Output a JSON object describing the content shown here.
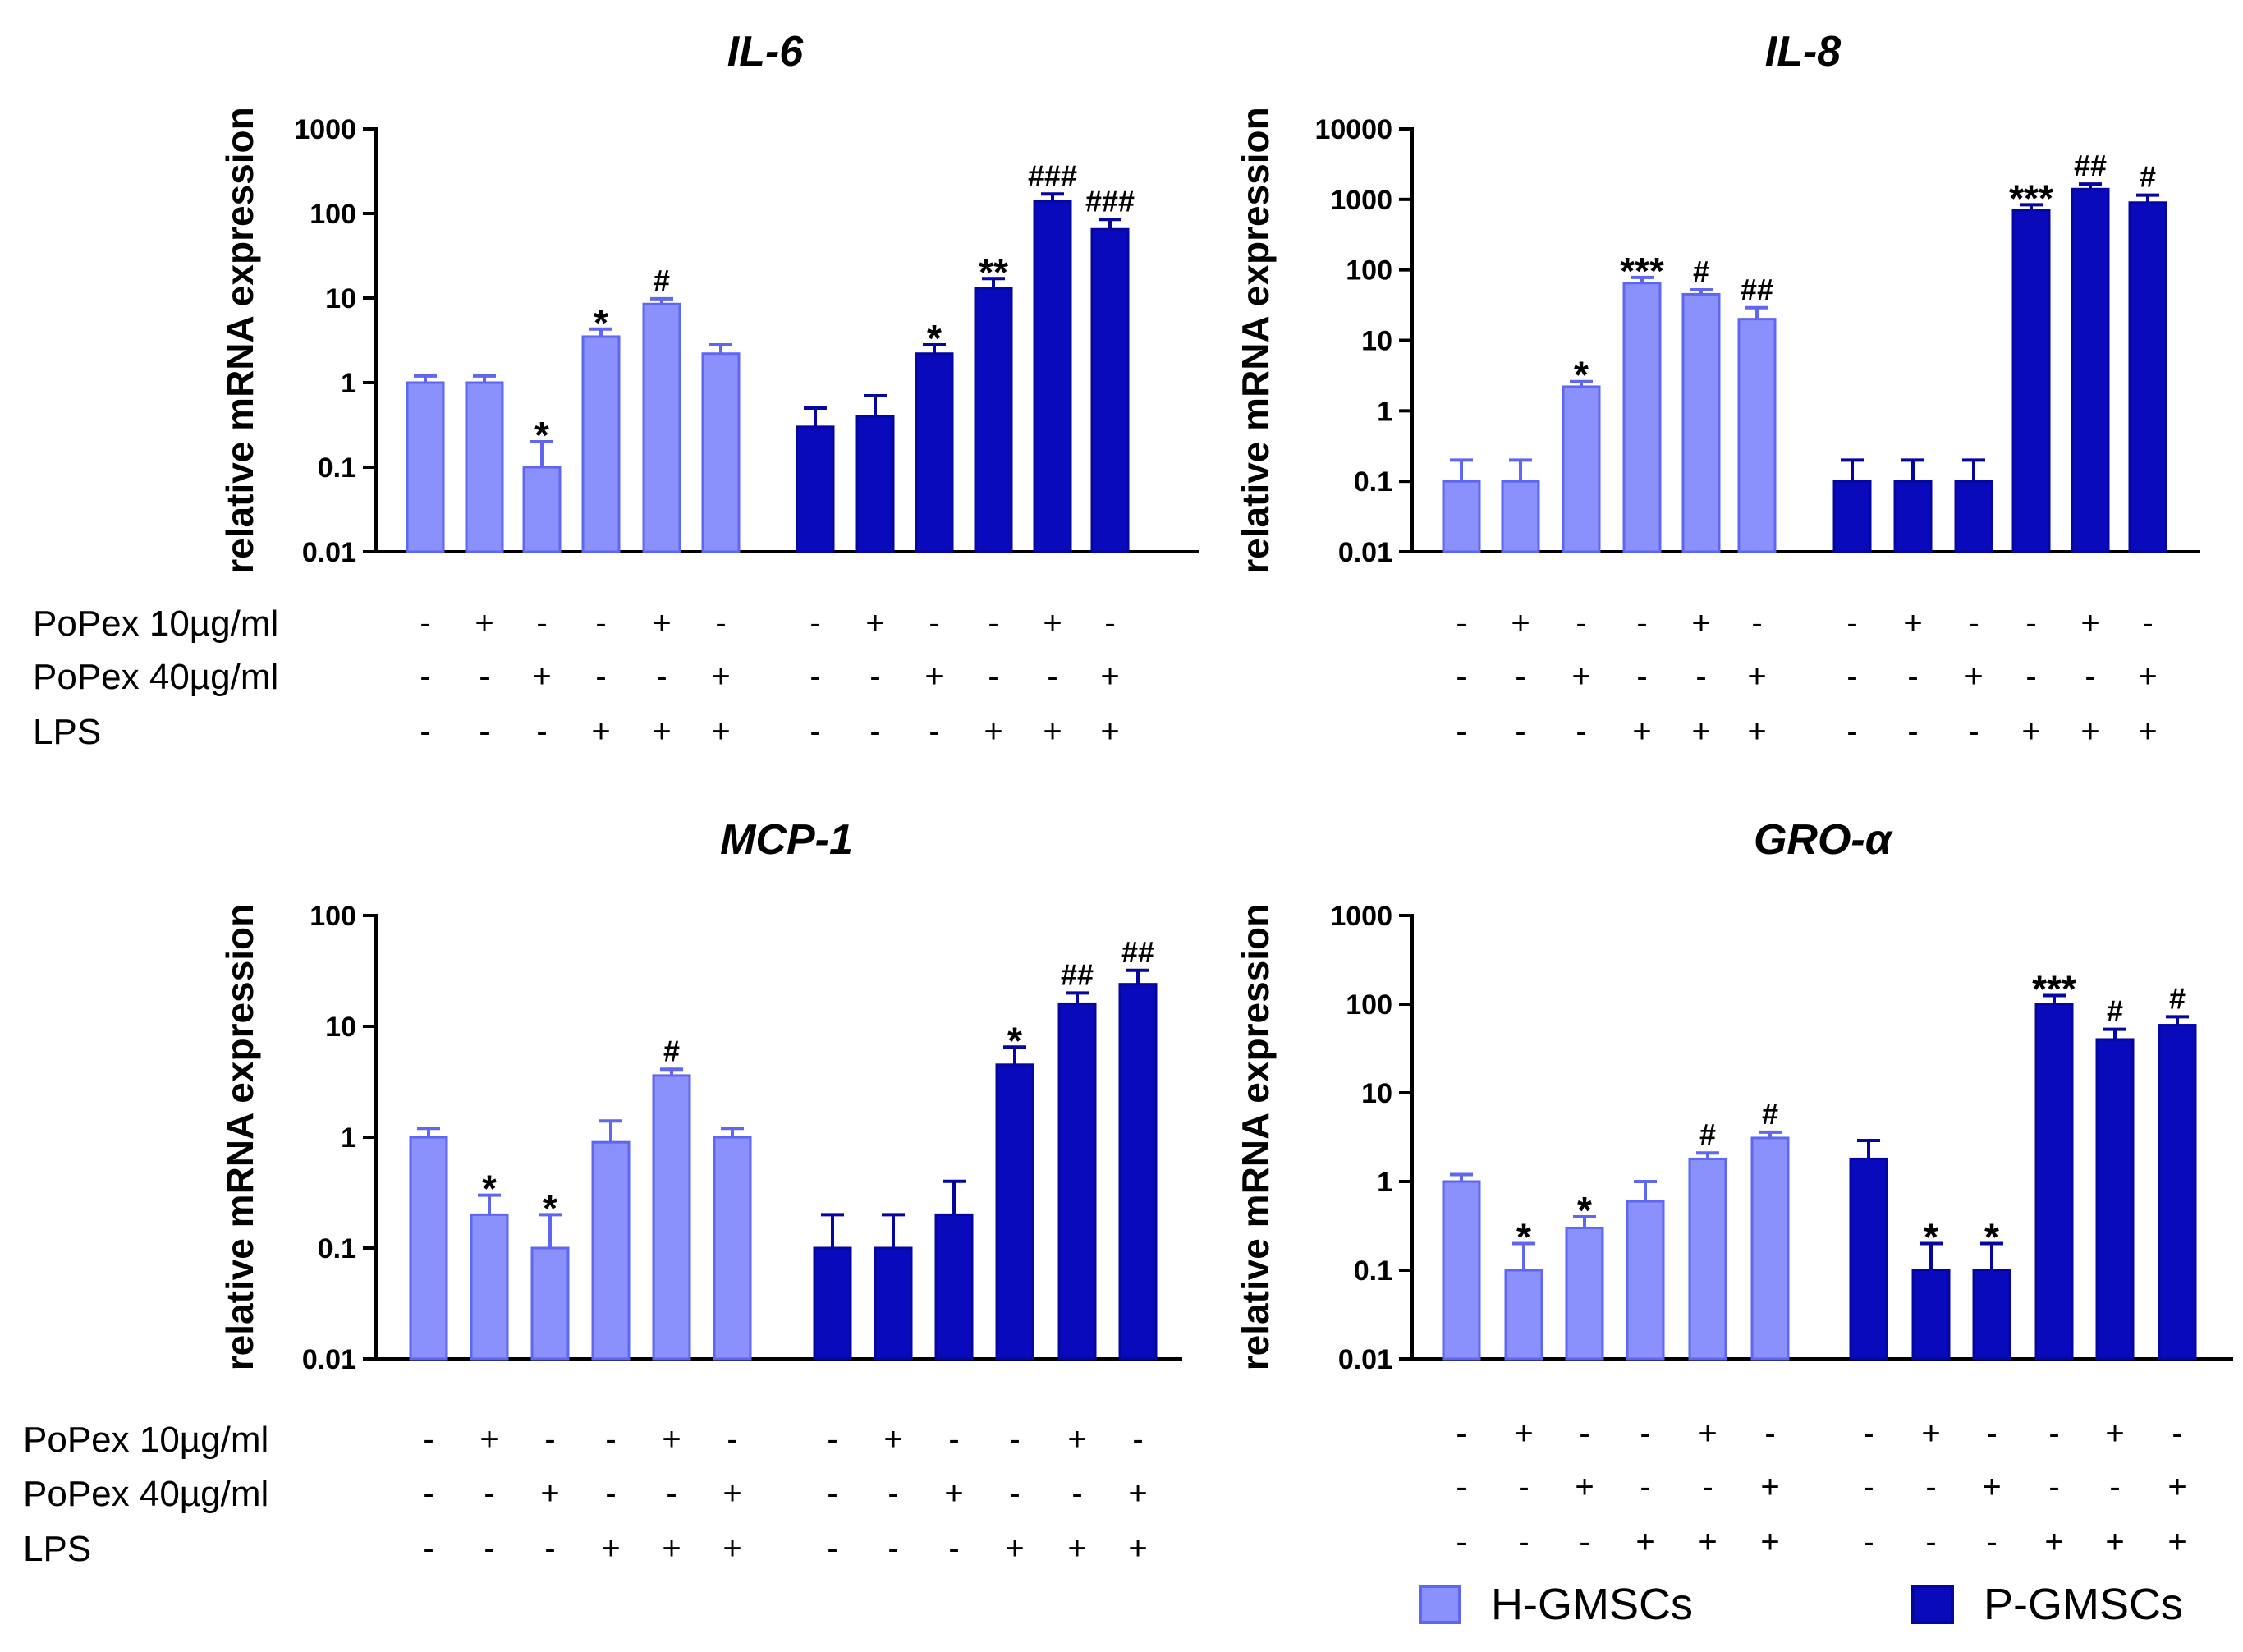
{
  "legend": {
    "items": [
      {
        "label": "H-GMSCs",
        "color": "#8a90fc"
      },
      {
        "label": "P-GMSCs",
        "color": "#0a0abd"
      }
    ]
  },
  "colors": {
    "h_fill": "#8a90fc",
    "h_stroke": "#5f66f0",
    "p_fill": "#0a0abd",
    "p_stroke": "#0505a0"
  },
  "conditions": {
    "row_labels": [
      "PoPex 10µg/ml",
      "PoPex 40µg/ml",
      "LPS"
    ],
    "rows": [
      [
        "-",
        "+",
        "-",
        "-",
        "+",
        "-"
      ],
      [
        "-",
        "-",
        "+",
        "-",
        "-",
        "+"
      ],
      [
        "-",
        "-",
        "-",
        "+",
        "+",
        "+"
      ]
    ]
  },
  "chart_data": [
    {
      "type": "bar",
      "title": "IL-6",
      "ylabel": "relative mRNA expression",
      "yscale": "log",
      "ylim": [
        0.01,
        1000
      ],
      "yticks": [
        "0.01",
        "0.1",
        "1",
        "10",
        "100",
        "1000"
      ],
      "show_row_labels": true,
      "series": [
        {
          "name": "H-GMSCs",
          "values": [
            1.0,
            1.0,
            0.1,
            3.5,
            8.5,
            2.2
          ],
          "errors": [
            1.2,
            1.2,
            0.2,
            4.3,
            9.8,
            2.8
          ],
          "annotations": [
            "",
            "",
            "*",
            "*",
            "#",
            ""
          ]
        },
        {
          "name": "P-GMSCs",
          "values": [
            0.3,
            0.4,
            2.2,
            13,
            140,
            65
          ],
          "errors": [
            0.5,
            0.7,
            2.8,
            17,
            170,
            85
          ],
          "annotations": [
            "",
            "",
            "*",
            "**",
            "###",
            "###"
          ]
        }
      ]
    },
    {
      "type": "bar",
      "title": "IL-8",
      "ylabel": "relative mRNA expression",
      "yscale": "log",
      "ylim": [
        0.01,
        10000
      ],
      "yticks": [
        "0.01",
        "0.1",
        "1",
        "10",
        "100",
        "1000",
        "10000"
      ],
      "show_row_labels": false,
      "series": [
        {
          "name": "H-GMSCs",
          "values": [
            0.1,
            0.1,
            2.2,
            65,
            45,
            20
          ],
          "errors": [
            0.2,
            0.2,
            2.6,
            78,
            52,
            29
          ],
          "annotations": [
            "",
            "",
            "*",
            "***",
            "#",
            "##"
          ]
        },
        {
          "name": "P-GMSCs",
          "values": [
            0.1,
            0.1,
            0.1,
            700,
            1400,
            900
          ],
          "errors": [
            0.2,
            0.2,
            0.2,
            840,
            1650,
            1150
          ],
          "annotations": [
            "",
            "",
            "",
            "***",
            "##",
            "#"
          ]
        }
      ]
    },
    {
      "type": "bar",
      "title": "MCP-1",
      "ylabel": "relative mRNA expression",
      "yscale": "log",
      "ylim": [
        0.01,
        100
      ],
      "yticks": [
        "0.01",
        "0.1",
        "1",
        "10",
        "100"
      ],
      "show_row_labels": true,
      "series": [
        {
          "name": "H-GMSCs",
          "values": [
            1.0,
            0.2,
            0.1,
            0.9,
            3.6,
            1.0
          ],
          "errors": [
            1.2,
            0.3,
            0.2,
            1.4,
            4.1,
            1.2
          ],
          "annotations": [
            "",
            "*",
            "*",
            "",
            "#",
            ""
          ]
        },
        {
          "name": "P-GMSCs",
          "values": [
            0.1,
            0.1,
            0.2,
            4.5,
            16,
            24
          ],
          "errors": [
            0.2,
            0.2,
            0.4,
            6.5,
            20,
            32
          ],
          "annotations": [
            "",
            "",
            "",
            "*",
            "##",
            "##"
          ]
        }
      ]
    },
    {
      "type": "bar",
      "title": "GRO-α",
      "ylabel": "relative mRNA expression",
      "yscale": "log",
      "ylim": [
        0.01,
        1000
      ],
      "yticks": [
        "0.01",
        "0.1",
        "1",
        "10",
        "100",
        "1000"
      ],
      "show_row_labels": false,
      "series": [
        {
          "name": "H-GMSCs",
          "values": [
            1.0,
            0.1,
            0.3,
            0.6,
            1.8,
            3.1
          ],
          "errors": [
            1.2,
            0.2,
            0.4,
            1.0,
            2.1,
            3.6
          ],
          "annotations": [
            "",
            "*",
            "*",
            "",
            "#",
            "#"
          ]
        },
        {
          "name": "P-GMSCs",
          "values": [
            1.8,
            0.1,
            0.1,
            100,
            40,
            58
          ],
          "errors": [
            2.9,
            0.2,
            0.2,
            125,
            52,
            72
          ],
          "annotations": [
            "",
            "*",
            "*",
            "***",
            "#",
            "#"
          ]
        }
      ]
    }
  ]
}
